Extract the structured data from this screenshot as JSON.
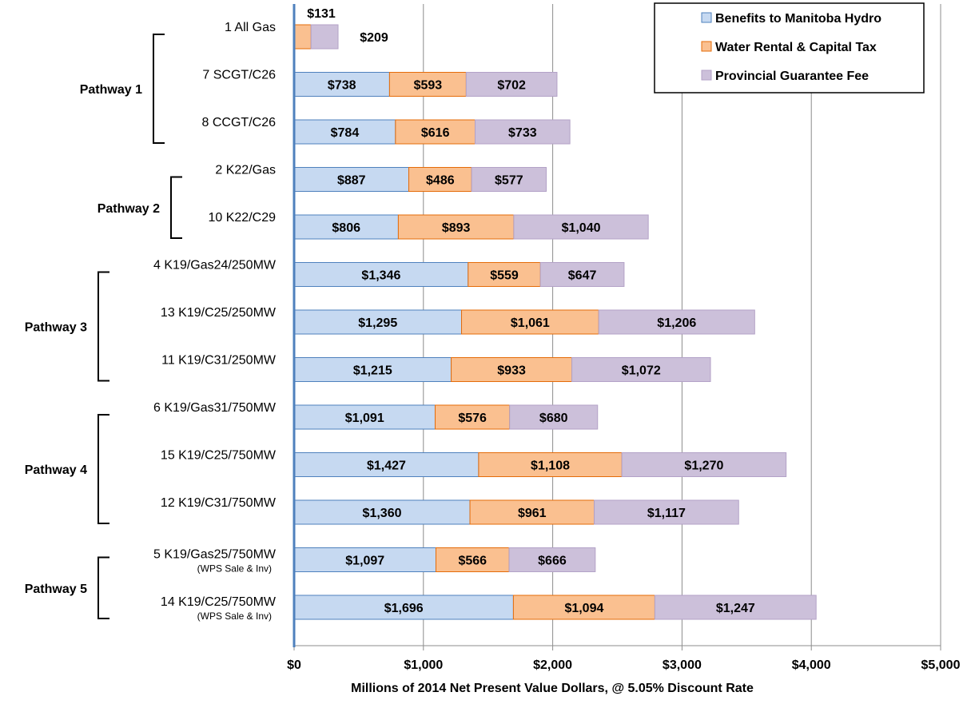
{
  "chart_data": {
    "type": "bar",
    "orientation": "horizontal",
    "stacked": true,
    "categories": [
      {
        "label": "1  All Gas",
        "sublabel": ""
      },
      {
        "label": "7  SCGT/C26",
        "sublabel": ""
      },
      {
        "label": "8  CCGT/C26",
        "sublabel": ""
      },
      {
        "label": "2  K22/Gas",
        "sublabel": ""
      },
      {
        "label": "10  K22/C29",
        "sublabel": ""
      },
      {
        "label": "4  K19/Gas24/250MW",
        "sublabel": ""
      },
      {
        "label": "13  K19/C25/250MW",
        "sublabel": ""
      },
      {
        "label": "11  K19/C31/250MW",
        "sublabel": ""
      },
      {
        "label": "6  K19/Gas31/750MW",
        "sublabel": ""
      },
      {
        "label": "15  K19/C25/750MW",
        "sublabel": ""
      },
      {
        "label": "12  K19/C31/750MW",
        "sublabel": ""
      },
      {
        "label": "5  K19/Gas25/750MW",
        "sublabel": "(WPS Sale & Inv)"
      },
      {
        "label": "14  K19/C25/750MW",
        "sublabel": "(WPS Sale & Inv)"
      }
    ],
    "series": [
      {
        "name": "Benefits to Manitoba Hydro",
        "color": "#c6d9f1",
        "stroke": "#4f81bd",
        "values": [
          0,
          738,
          784,
          887,
          806,
          1346,
          1295,
          1215,
          1091,
          1427,
          1360,
          1097,
          1696
        ],
        "labels": [
          "",
          "$738",
          "$784",
          "$887",
          "$806",
          "$1,346",
          "$1,295",
          "$1,215",
          "$1,091",
          "$1,427",
          "$1,360",
          "$1,097",
          "$1,696"
        ]
      },
      {
        "name": "Water Rental & Capital Tax",
        "color": "#fac090",
        "stroke": "#e46c0a",
        "values": [
          131,
          593,
          616,
          486,
          893,
          559,
          1061,
          933,
          576,
          1108,
          961,
          566,
          1094
        ],
        "labels": [
          "$131",
          "$593",
          "$616",
          "$486",
          "$893",
          "$559",
          "$1,061",
          "$933",
          "$576",
          "$1,108",
          "$961",
          "$566",
          "$1,094"
        ]
      },
      {
        "name": "Provincial Guarantee Fee",
        "color": "#ccc0da",
        "stroke": "#b3a2c7",
        "values": [
          209,
          702,
          733,
          577,
          1040,
          647,
          1206,
          1072,
          680,
          1270,
          1117,
          666,
          1247
        ],
        "labels": [
          "$209",
          "$702",
          "$733",
          "$577",
          "$1,040",
          "$647",
          "$1,206",
          "$1,072",
          "$680",
          "$1,270",
          "$1,117",
          "$666",
          "$1,247"
        ]
      }
    ],
    "pathways": [
      {
        "label": "Pathway 1",
        "from": 0,
        "to": 2
      },
      {
        "label": "Pathway 2",
        "from": 3,
        "to": 4
      },
      {
        "label": "Pathway 3",
        "from": 5,
        "to": 7
      },
      {
        "label": "Pathway 4",
        "from": 8,
        "to": 10
      },
      {
        "label": "Pathway 5",
        "from": 11,
        "to": 12
      }
    ],
    "xlim": [
      0,
      5000
    ],
    "xticks": [
      0,
      1000,
      2000,
      3000,
      4000,
      5000
    ],
    "xtick_labels": [
      "$0",
      "$1,000",
      "$2,000",
      "$3,000",
      "$4,000",
      "$5,000"
    ],
    "xlabel": "Millions of 2014 Net Present Value Dollars, @ 5.05% Discount Rate",
    "title": "",
    "grid": "vertical",
    "legend_position": "top-right"
  }
}
